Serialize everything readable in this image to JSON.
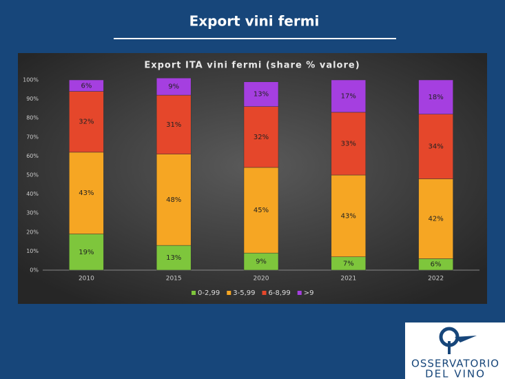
{
  "slide": {
    "title": "Export vini fermi"
  },
  "chart_data": {
    "type": "stacked_bar",
    "title": "Export ITA vini fermi (share % valore)",
    "categories": [
      "2010",
      "2015",
      "2020",
      "2021",
      "2022"
    ],
    "series": [
      {
        "name": "0-2,99",
        "color": "#7ec63c",
        "values": [
          19,
          13,
          9,
          7,
          6
        ],
        "value_labels": [
          "19%",
          "13%",
          "9%",
          "7%",
          "6%"
        ]
      },
      {
        "name": "3-5,99",
        "color": "#f6a623",
        "values": [
          43,
          48,
          45,
          43,
          42
        ],
        "value_labels": [
          "43%",
          "48%",
          "45%",
          "43%",
          "42%"
        ]
      },
      {
        "name": "6-8,99",
        "color": "#e5472b",
        "values": [
          32,
          31,
          32,
          33,
          34
        ],
        "value_labels": [
          "32%",
          "31%",
          "32%",
          "33%",
          "34%"
        ]
      },
      {
        "name": ">9",
        "color": "#a53fe0",
        "values": [
          6,
          9,
          13,
          17,
          18
        ],
        "value_labels": [
          "6%",
          "9%",
          "13%",
          "17%",
          "18%"
        ]
      }
    ],
    "ylim": [
      0,
      100
    ],
    "yticks": [
      {
        "value": 0,
        "label": "0%"
      },
      {
        "value": 10,
        "label": "10%"
      },
      {
        "value": 20,
        "label": "20%"
      },
      {
        "value": 30,
        "label": "30%"
      },
      {
        "value": 40,
        "label": "40%"
      },
      {
        "value": 50,
        "label": "50%"
      },
      {
        "value": 60,
        "label": "60%"
      },
      {
        "value": 70,
        "label": "70%"
      },
      {
        "value": 80,
        "label": "80%"
      },
      {
        "value": 90,
        "label": "90%"
      },
      {
        "value": 100,
        "label": "100%"
      }
    ],
    "grid": false,
    "legend": "bottom"
  },
  "logo": {
    "line1": "OSSERVATORIO",
    "line2": "DEL VINO"
  }
}
